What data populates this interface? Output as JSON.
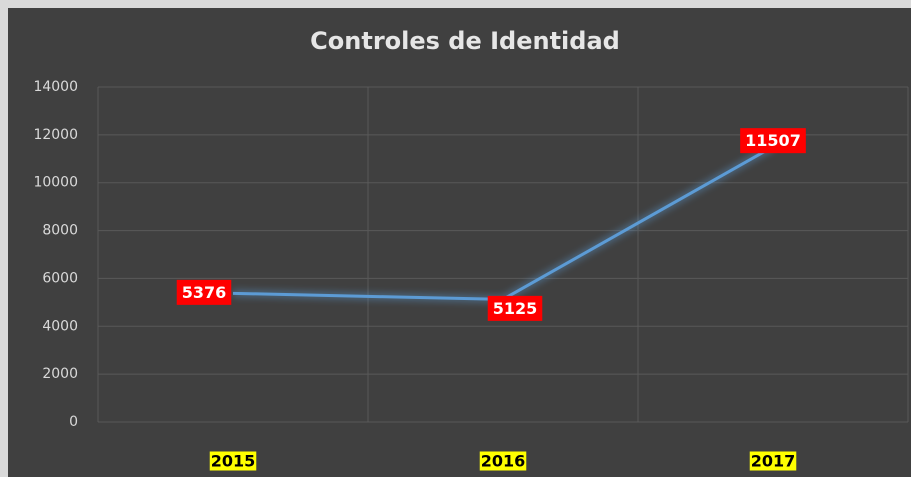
{
  "chart_data": {
    "type": "line",
    "title": "Controles de Identidad",
    "categories": [
      "2015",
      "2016",
      "2017"
    ],
    "series": [
      {
        "name": "Controles de Identidad",
        "color": "#5b9bd5",
        "values": [
          5376,
          5125,
          11507
        ]
      }
    ],
    "ylim": [
      0,
      14000
    ],
    "yticks": [
      0,
      2000,
      4000,
      6000,
      8000,
      10000,
      12000,
      14000
    ],
    "grid": true,
    "label_color": "#ff0000",
    "category_highlight": "#ffff00"
  }
}
